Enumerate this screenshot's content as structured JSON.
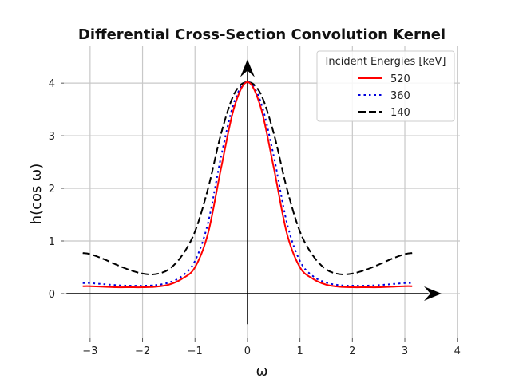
{
  "chart_data": {
    "type": "line",
    "title": "Differential Cross-Section Convolution Kernel",
    "xlabel": "ω",
    "ylabel": "h(cos ω)",
    "xlim": [
      -3.5,
      4.05
    ],
    "ylim": [
      -0.85,
      4.7
    ],
    "xticks": [
      -3,
      -2,
      -1,
      0,
      1,
      2,
      3,
      4
    ],
    "yticks": [
      0,
      1,
      2,
      3,
      4
    ],
    "grid": true,
    "legend": {
      "title": "Incident Energies [keV]",
      "placement": "top-right"
    },
    "x": [
      -3.14,
      -3.0,
      -2.75,
      -2.5,
      -2.25,
      -2.0,
      -1.75,
      -1.5,
      -1.25,
      -1.0,
      -0.75,
      -0.5,
      -0.25,
      0.0,
      0.25,
      0.5,
      0.75,
      1.0,
      1.25,
      1.5,
      1.75,
      2.0,
      2.25,
      2.5,
      2.75,
      3.0,
      3.14
    ],
    "series": [
      {
        "name": "520",
        "color": "#ff0000",
        "style": "solid",
        "values": [
          0.14,
          0.14,
          0.13,
          0.12,
          0.12,
          0.12,
          0.13,
          0.17,
          0.28,
          0.5,
          1.15,
          2.4,
          3.55,
          4.02,
          3.55,
          2.4,
          1.15,
          0.5,
          0.28,
          0.17,
          0.13,
          0.12,
          0.12,
          0.12,
          0.13,
          0.14,
          0.14
        ]
      },
      {
        "name": "360",
        "color": "#0000dd",
        "style": "dotted",
        "values": [
          0.2,
          0.2,
          0.18,
          0.16,
          0.15,
          0.15,
          0.16,
          0.21,
          0.33,
          0.62,
          1.35,
          2.62,
          3.65,
          4.02,
          3.65,
          2.62,
          1.35,
          0.62,
          0.33,
          0.21,
          0.16,
          0.15,
          0.15,
          0.16,
          0.18,
          0.2,
          0.2
        ]
      },
      {
        "name": "140",
        "color": "#000000",
        "style": "dashed",
        "values": [
          0.77,
          0.75,
          0.66,
          0.55,
          0.45,
          0.38,
          0.37,
          0.46,
          0.72,
          1.18,
          2.0,
          3.05,
          3.8,
          4.02,
          3.8,
          3.05,
          2.0,
          1.18,
          0.72,
          0.46,
          0.37,
          0.38,
          0.45,
          0.55,
          0.66,
          0.75,
          0.77
        ]
      }
    ]
  }
}
